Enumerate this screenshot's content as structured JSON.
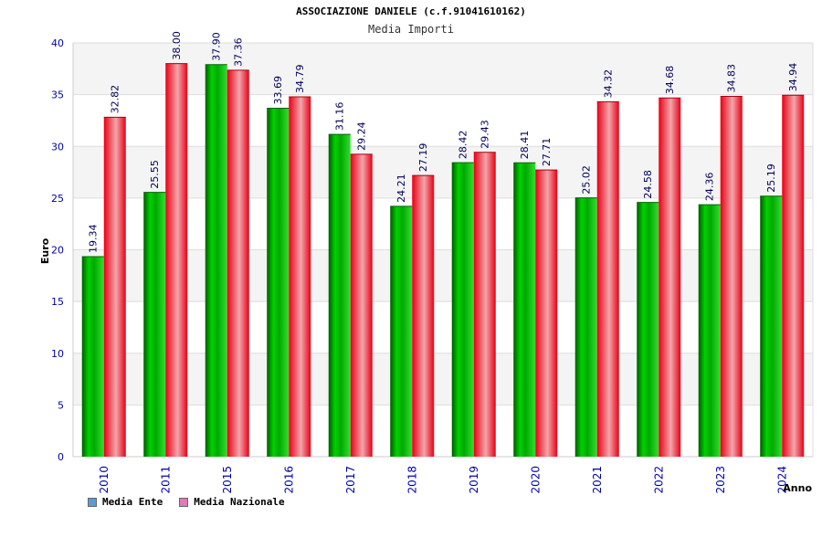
{
  "chart_data": {
    "type": "bar",
    "title": "ASSOCIAZIONE DANIELE (c.f.91041610162)",
    "subtitle": "Media Importi",
    "xlabel": "Anno",
    "ylabel": "Euro",
    "ylim": [
      0,
      40
    ],
    "yticks": [
      0,
      5,
      10,
      15,
      20,
      25,
      30,
      35,
      40
    ],
    "grid": true,
    "legend_position": "bottom-left",
    "categories": [
      "2010",
      "2011",
      "2015",
      "2016",
      "2017",
      "2018",
      "2019",
      "2020",
      "2021",
      "2022",
      "2023",
      "2024"
    ],
    "series": [
      {
        "name": "Media Ente",
        "color": "#00c000",
        "legend_color": "#5b9bd5",
        "values": [
          19.34,
          25.55,
          37.9,
          33.69,
          31.16,
          24.21,
          28.42,
          28.41,
          25.02,
          24.58,
          24.36,
          25.19
        ],
        "labels": [
          "19.34",
          "25.55",
          "37.90",
          "33.69",
          "31.16",
          "24.21",
          "28.42",
          "28.41",
          "25.02",
          "24.58",
          "24.36",
          "25.19"
        ]
      },
      {
        "name": "Media Nazionale",
        "color": "#ee1122",
        "legend_color": "#e07bb5",
        "values": [
          32.82,
          38.0,
          37.36,
          34.79,
          29.24,
          27.19,
          29.43,
          27.71,
          34.32,
          34.68,
          34.83,
          34.94
        ],
        "labels": [
          "32.82",
          "38.00",
          "37.36",
          "34.79",
          "29.24",
          "27.19",
          "29.43",
          "27.71",
          "34.32",
          "34.68",
          "34.83",
          "34.94"
        ]
      }
    ]
  }
}
